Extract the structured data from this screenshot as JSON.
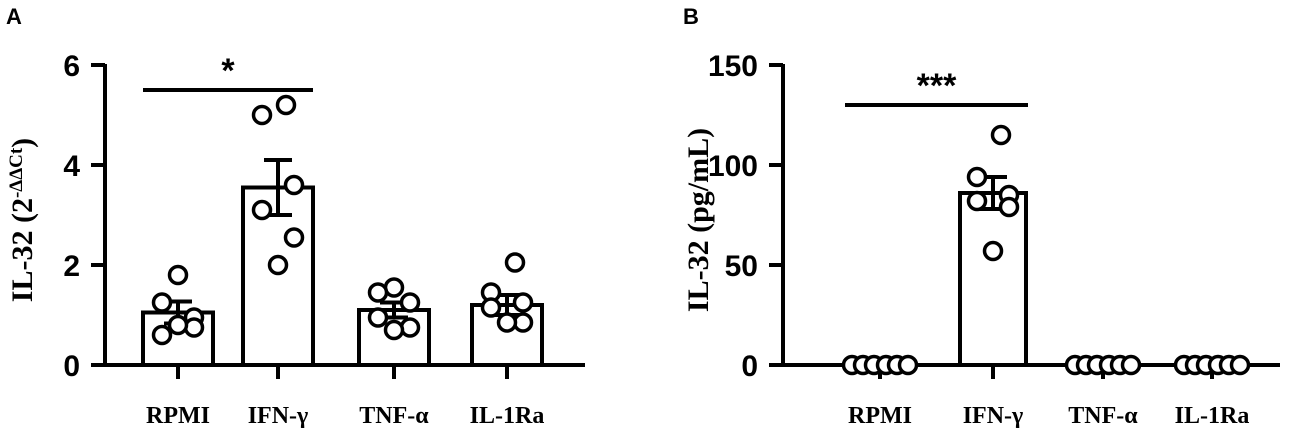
{
  "chart_data": [
    {
      "panel": "A",
      "type": "bar",
      "title": "",
      "xlabel": "",
      "ylabel": "IL-32 (2",
      "ylabel_sup": "-ΔΔCt",
      "ylabel_close": ")",
      "categories": [
        "RPMI",
        "IFN-γ",
        "TNF-α",
        "IL-1Ra"
      ],
      "ylim": [
        0,
        6
      ],
      "yticks": [
        0,
        2,
        4,
        6
      ],
      "means": [
        1.05,
        3.55,
        1.1,
        1.2
      ],
      "sem": [
        0.22,
        0.55,
        0.15,
        0.2
      ],
      "points": [
        [
          1.8,
          1.25,
          0.95,
          0.6,
          0.75,
          0.8
        ],
        [
          5.2,
          5.0,
          3.6,
          3.1,
          2.55,
          2.0
        ],
        [
          1.55,
          1.45,
          1.25,
          0.95,
          0.75,
          0.7
        ],
        [
          2.05,
          1.45,
          1.25,
          1.15,
          0.85,
          0.85
        ]
      ],
      "significance": [
        {
          "from": 0,
          "to": 1,
          "label": "*",
          "y": 5.5
        }
      ],
      "grid": false,
      "legend": "none"
    },
    {
      "panel": "B",
      "type": "bar",
      "title": "",
      "xlabel": "",
      "ylabel": "IL-32 (pg/mL)",
      "categories": [
        "RPMI",
        "IFN-γ",
        "TNF-α",
        "IL-1Ra"
      ],
      "ylim": [
        0,
        150
      ],
      "yticks": [
        0,
        50,
        100,
        150
      ],
      "means": [
        0,
        86,
        0,
        0
      ],
      "sem": [
        0,
        8,
        0,
        0
      ],
      "points": [
        [
          0,
          0,
          0,
          0,
          0,
          0
        ],
        [
          115,
          94,
          85,
          82,
          79,
          57
        ],
        [
          0,
          0,
          0,
          0,
          0,
          0
        ],
        [
          0,
          0,
          0,
          0,
          0,
          0
        ]
      ],
      "significance": [
        {
          "from": 0,
          "to": 1,
          "label": "***",
          "y": 130
        }
      ],
      "grid": false,
      "legend": "none"
    }
  ]
}
